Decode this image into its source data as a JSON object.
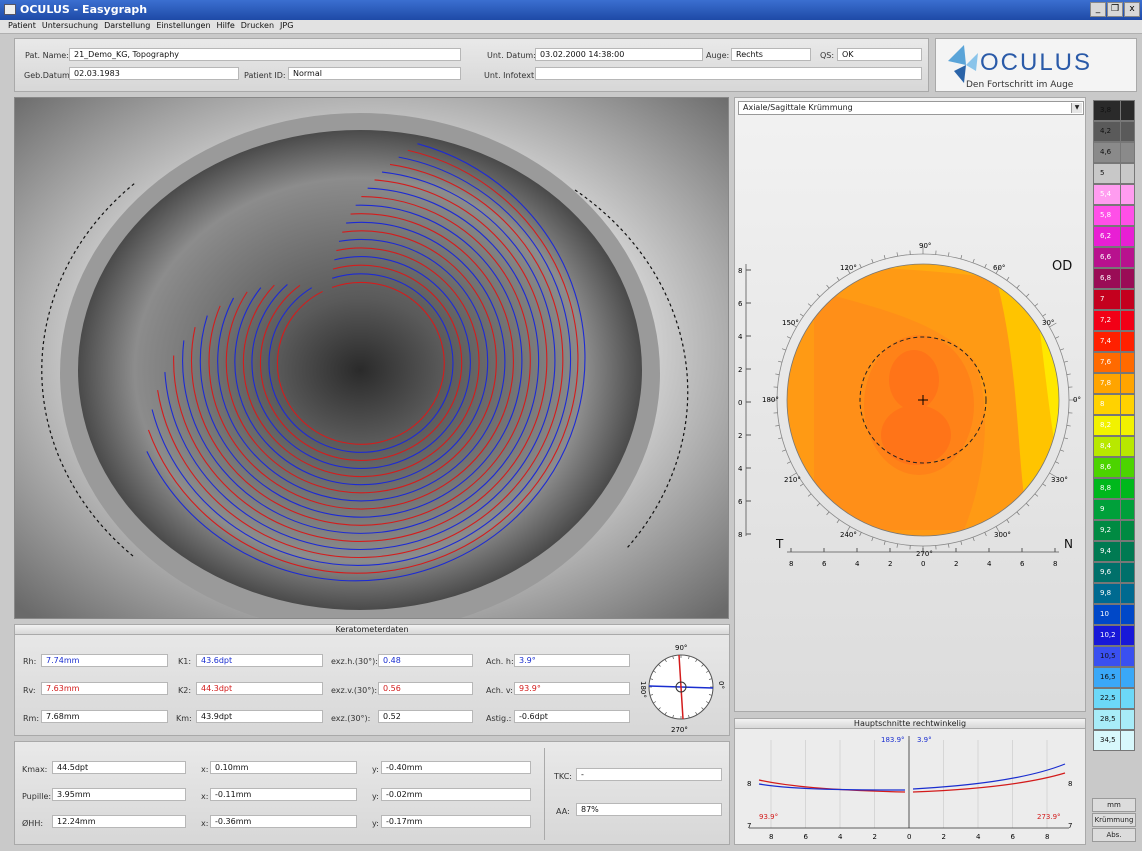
{
  "window": {
    "title": "OCULUS - Easygraph",
    "controls": [
      "_",
      "&#x2752;",
      "x"
    ]
  },
  "menu": [
    "Patient",
    "Untersuchung",
    "Darstellung",
    "Einstellungen",
    "Hilfe",
    "Drucken",
    "JPG"
  ],
  "patient": {
    "name_label": "Pat. Name:",
    "name": "21_Demo_KG, Topography",
    "dob_label": "Geb.Datum:",
    "dob": "02.03.1983",
    "id_label": "Patient ID:",
    "id": "Normal",
    "exam_date_label": "Unt. Datum:",
    "exam_date": "03.02.2000 14:38:00",
    "eye_label": "Auge:",
    "eye": "Rechts",
    "qs_label": "QS:",
    "qs": "OK",
    "info_label": "Unt. Infotext:",
    "info": ""
  },
  "logo": {
    "brand": "OCULUS",
    "tagline": "Den Fortschritt im Auge"
  },
  "map": {
    "dropdown": "Axiale/Sagittale Krümmung",
    "eye": "OD",
    "temporal": "T",
    "nasal": "N",
    "angles": [
      "90°",
      "60°",
      "30°",
      "0°",
      "330°",
      "300°",
      "270°",
      "240°",
      "210°",
      "180°",
      "150°",
      "120°"
    ],
    "yticks": [
      "8",
      "6",
      "4",
      "2",
      "0",
      "2",
      "4",
      "6",
      "8"
    ],
    "xticks": [
      "8",
      "6",
      "4",
      "2",
      "0",
      "2",
      "4",
      "6",
      "8"
    ]
  },
  "color_scale": {
    "values": [
      "3,8",
      "4,2",
      "4,6",
      "5",
      "5,4",
      "5,8",
      "6,2",
      "6,6",
      "6,8",
      "7",
      "7,2",
      "7,4",
      "7,6",
      "7,8",
      "8",
      "8,2",
      "8,4",
      "8,6",
      "8,8",
      "9",
      "9,2",
      "9,4",
      "9,6",
      "9,8",
      "10",
      "10,2",
      "10,5",
      "16,5",
      "22,5",
      "28,5",
      "34,5"
    ],
    "colors": [
      "#2a2a2a",
      "#5a5a5a",
      "#8a8a8a",
      "#c8c8c8",
      "#ff9cf0",
      "#ff4fe8",
      "#e81fd4",
      "#b8118e",
      "#9a0c56",
      "#c4001e",
      "#f20016",
      "#ff2000",
      "#ff6a00",
      "#ffa400",
      "#ffd200",
      "#f2f200",
      "#b8e800",
      "#4cd400",
      "#00b81c",
      "#00a03a",
      "#008a42",
      "#007a52",
      "#00706a",
      "#006a90",
      "#0048c8",
      "#1818d8",
      "#3a50f0",
      "#3aa8f8",
      "#6cd8f8",
      "#a8ecf8",
      "#d8f8fc"
    ],
    "buttons": [
      "mm",
      "Krümmung",
      "Abs."
    ]
  },
  "kerato": {
    "title": "Keratometerdaten",
    "rh_label": "Rh:",
    "rh": "7.74mm",
    "rv_label": "Rv:",
    "rv": "7.63mm",
    "rm_label": "Rm:",
    "rm": "7.68mm",
    "k1_label": "K1:",
    "k1": "43.6dpt",
    "k2_label": "K2:",
    "k2": "44.3dpt",
    "km_label": "Km:",
    "km": "43.9dpt",
    "exh_label": "exz.h.(30°):",
    "exh": "0.48",
    "exv_label": "exz.v.(30°):",
    "exv": "0.56",
    "ex_label": "exz.(30°):",
    "ex": "0.52",
    "achh_label": "Ach. h:",
    "achh": "3.9°",
    "achv_label": "Ach. v:",
    "achv": "93.9°",
    "astig_label": "Astig.:",
    "astig": "-0.6dpt",
    "dial": {
      "top": "90°",
      "bottom": "270°",
      "left": "180°",
      "right": "0°"
    }
  },
  "measure": {
    "kmax_label": "Kmax:",
    "kmax": "44.5dpt",
    "pupille_label": "Pupille:",
    "pupille": "3.95mm",
    "hh_label": "ØHH:",
    "hh": "12.24mm",
    "x_label": "x:",
    "y_label": "y:",
    "kmax_x": "0.10mm",
    "kmax_y": "-0.40mm",
    "pup_x": "-0.11mm",
    "pup_y": "-0.02mm",
    "hh_x": "-0.36mm",
    "hh_y": "-0.17mm",
    "tkc_label": "TKC:",
    "tkc": "-",
    "aa_label": "AA:",
    "aa": "87%"
  },
  "profile": {
    "title": "Hauptschnitte rechtwinkelig",
    "ang_blue_a": "183.9°",
    "ang_blue_b": "3.9°",
    "ang_red_l": "93.9°",
    "ang_red_r": "273.9°",
    "yticks": [
      "8",
      "7"
    ],
    "xticks": [
      "8",
      "6",
      "4",
      "2",
      "0",
      "2",
      "4",
      "6",
      "8"
    ]
  }
}
